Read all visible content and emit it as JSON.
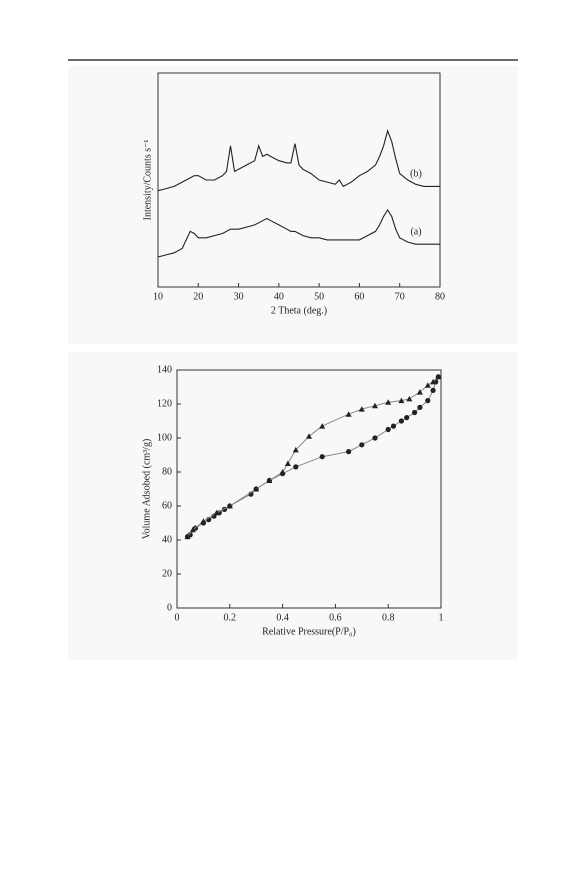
{
  "chart_data": [
    {
      "type": "line",
      "x_label": "2 Theta (deg.)",
      "y_label": "Intensity/Counts s⁻¹",
      "x": [
        10,
        12,
        14,
        16,
        18,
        19,
        20,
        22,
        24,
        26,
        27,
        28,
        29,
        30,
        32,
        34,
        35,
        36,
        37,
        38,
        40,
        42,
        43,
        44,
        45,
        46,
        48,
        50,
        52,
        54,
        55,
        56,
        58,
        60,
        62,
        64,
        65,
        66,
        67,
        68,
        69,
        70,
        72,
        74,
        76,
        78,
        80
      ],
      "series": [
        {
          "name": "(b)",
          "color": "#222",
          "values": [
            45,
            46,
            47,
            49,
            51,
            52,
            52,
            50,
            50,
            52,
            54,
            66,
            54,
            55,
            57,
            59,
            66,
            61,
            62,
            61,
            59,
            58,
            58,
            67,
            57,
            55,
            53,
            50,
            49,
            48,
            50,
            47,
            49,
            52,
            54,
            57,
            61,
            66,
            73,
            68,
            60,
            53,
            50,
            48,
            47,
            47,
            47
          ]
        },
        {
          "name": "(a)",
          "color": "#222",
          "values": [
            14,
            15,
            16,
            18,
            26,
            25,
            23,
            23,
            24,
            25,
            26,
            27,
            27,
            27,
            28,
            29,
            30,
            31,
            32,
            31,
            29,
            27,
            26,
            26,
            25,
            24,
            23,
            23,
            22,
            22,
            22,
            22,
            22,
            22,
            24,
            26,
            29,
            33,
            36,
            33,
            27,
            23,
            21,
            20,
            20,
            20,
            20
          ]
        }
      ],
      "xlim": [
        10,
        80
      ],
      "xticks": [
        10,
        20,
        30,
        40,
        50,
        60,
        70,
        80
      ],
      "ylim": [
        0,
        100
      ]
    },
    {
      "type": "scatter",
      "x_label": "Relative Pressure(P/P₀)",
      "y_label": "Volume  Adsobed (cm³/g)",
      "series": [
        {
          "marker": "circle",
          "color": "#222",
          "x": [
            0.04,
            0.05,
            0.07,
            0.1,
            0.12,
            0.14,
            0.16,
            0.18,
            0.2,
            0.28,
            0.3,
            0.35,
            0.4,
            0.45,
            0.55,
            0.65,
            0.7,
            0.75,
            0.8,
            0.82,
            0.85,
            0.87,
            0.9,
            0.92,
            0.95,
            0.97,
            0.98,
            0.99
          ],
          "values": [
            42,
            43,
            47,
            50,
            52,
            54,
            56,
            58,
            60,
            67,
            70,
            75,
            79,
            83,
            89,
            92,
            96,
            100,
            105,
            107,
            110,
            112,
            115,
            118,
            122,
            128,
            133,
            136
          ]
        },
        {
          "marker": "triangle",
          "color": "#222",
          "x": [
            0.99,
            0.97,
            0.95,
            0.92,
            0.88,
            0.85,
            0.8,
            0.75,
            0.7,
            0.65,
            0.55,
            0.5,
            0.45,
            0.42,
            0.4,
            0.35,
            0.3,
            0.2,
            0.15,
            0.1,
            0.06,
            0.04
          ],
          "values": [
            136,
            133,
            131,
            127,
            123,
            122,
            121,
            119,
            117,
            114,
            107,
            101,
            93,
            85,
            80,
            75,
            70,
            60,
            56,
            51,
            46,
            42
          ]
        }
      ],
      "xlim": [
        0,
        1
      ],
      "xticks": [
        0,
        0.2,
        0.4,
        0.6,
        0.8,
        1
      ],
      "ylim": [
        0,
        140
      ],
      "yticks": [
        0,
        20,
        40,
        60,
        80,
        100,
        120,
        140
      ]
    }
  ]
}
